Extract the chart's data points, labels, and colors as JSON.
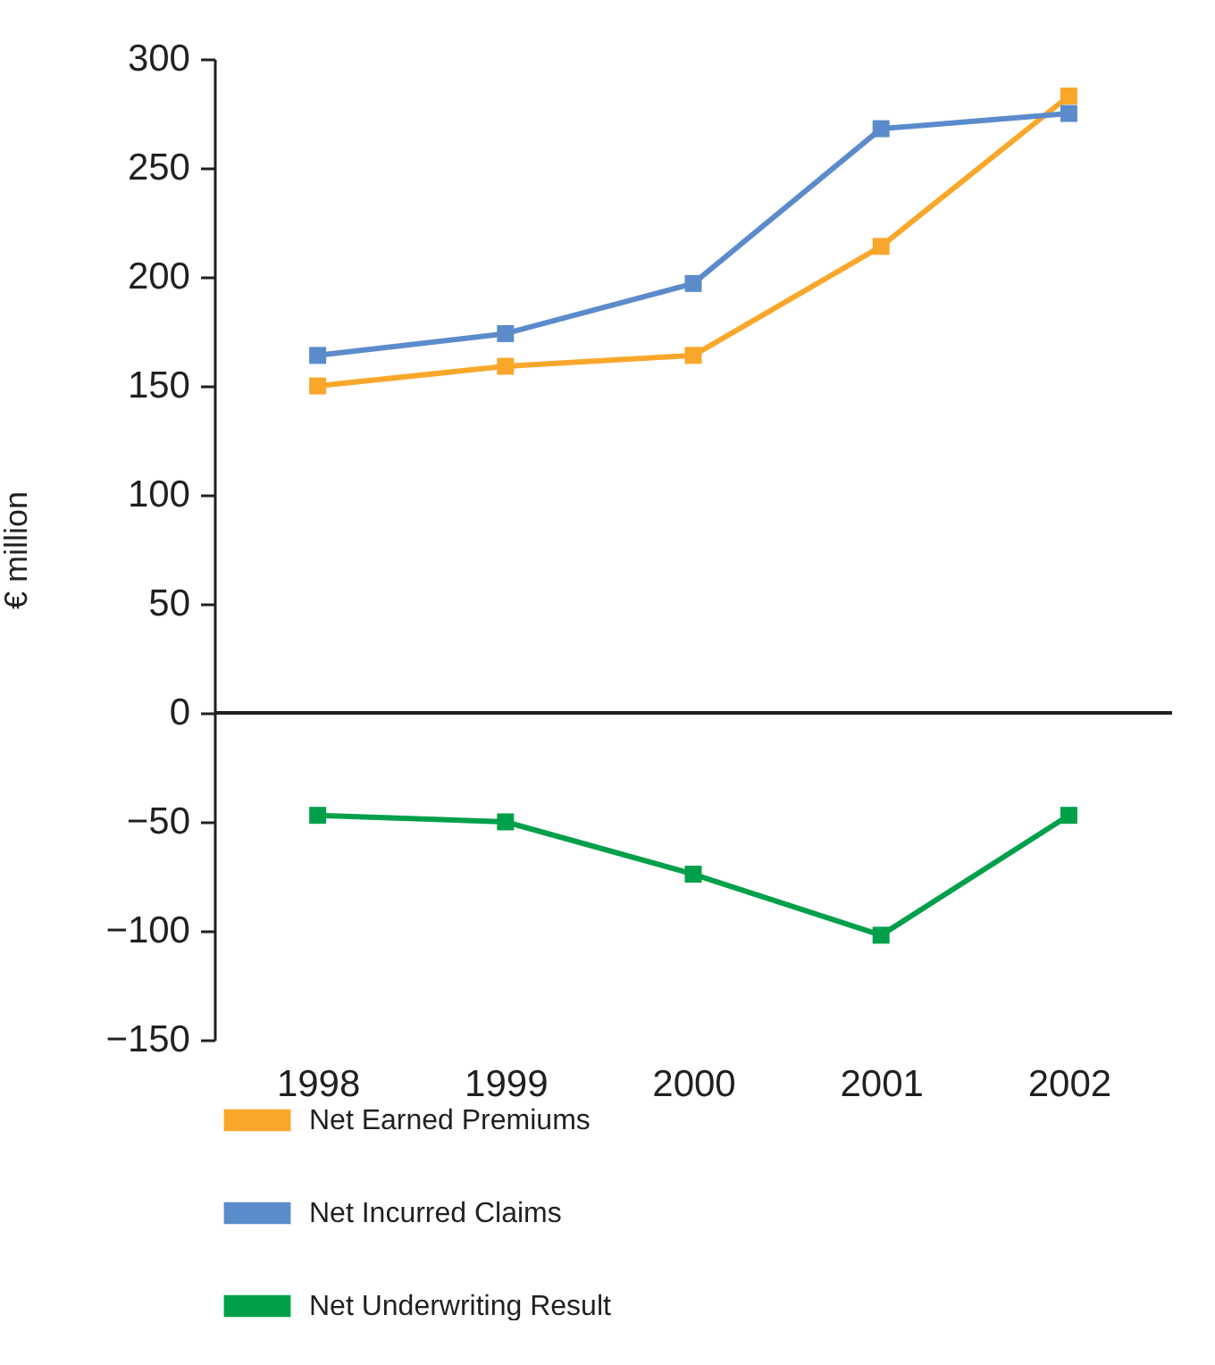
{
  "chart_data": {
    "type": "line",
    "ylabel": "€ million",
    "categories": [
      "1998",
      "1999",
      "2000",
      "2001",
      "2002"
    ],
    "series": [
      {
        "name": "Net Earned Premiums",
        "color": "#f9a72b",
        "values": [
          150,
          159,
          164,
          214,
          283
        ]
      },
      {
        "name": "Net Incurred Claims",
        "color": "#5b8bcb",
        "values": [
          164,
          174,
          197,
          268,
          275
        ]
      },
      {
        "name": "Net Underwriting Result",
        "color": "#00a04a",
        "values": [
          -47,
          -50,
          -74,
          -102,
          -47
        ]
      }
    ],
    "ylim": [
      -150,
      300
    ],
    "yticks": [
      -150,
      -100,
      -50,
      0,
      50,
      100,
      150,
      200,
      250,
      300
    ],
    "ref_lines": [
      {
        "axis": "y",
        "value": 0,
        "color": "#231f20"
      }
    ],
    "marker": "square",
    "line_style": "solid",
    "legend": "bottom",
    "grid": false
  }
}
